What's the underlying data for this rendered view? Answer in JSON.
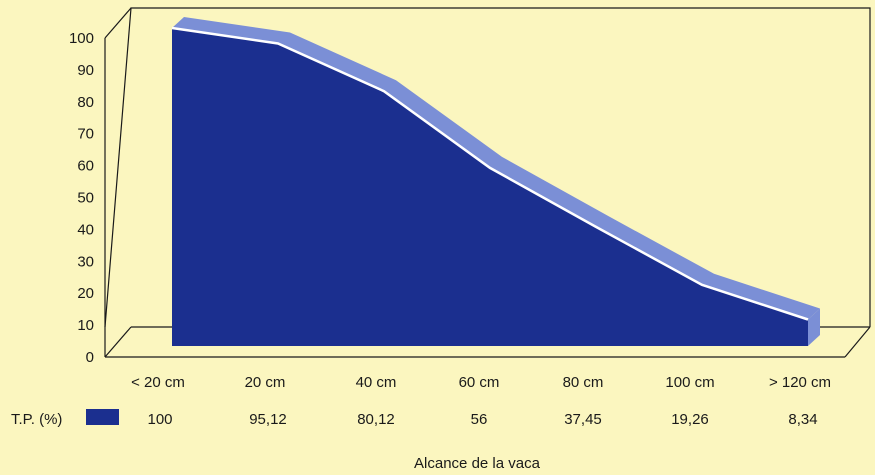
{
  "chart_data": {
    "type": "area",
    "title": "",
    "categories": [
      "< 20 cm",
      "20 cm",
      "40 cm",
      "60 cm",
      "80 cm",
      "100 cm",
      "> 120 cm"
    ],
    "series": [
      {
        "name": "T.P. (%)",
        "values": [
          100,
          95.12,
          80.12,
          56,
          37.45,
          19.26,
          8.34
        ],
        "color": "#1b2f8f"
      }
    ],
    "table_values": [
      "100",
      "95,12",
      "80,12",
      "56",
      "37,45",
      "19,26",
      "8,34"
    ],
    "legend_label": "T.P. (%)",
    "xlabel": "Alcance de la vaca",
    "ylabel": "",
    "ylim": [
      0,
      100
    ],
    "yticks": [
      "0",
      "10",
      "20",
      "30",
      "40",
      "50",
      "60",
      "70",
      "80",
      "90",
      "100"
    ],
    "grid": false,
    "style": "3d",
    "colors": {
      "fill": "#1b2f8f",
      "top_face": "#7b8fd6",
      "edge": "#ffffff",
      "background": "#fbf6bf"
    }
  }
}
